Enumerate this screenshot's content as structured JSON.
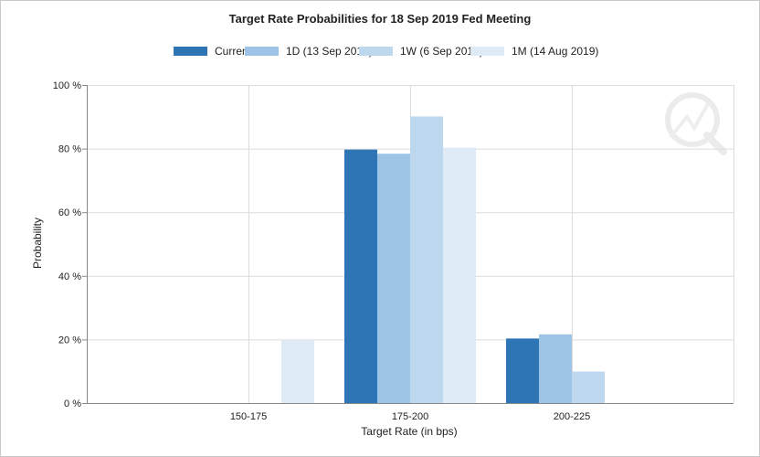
{
  "chart_data": {
    "type": "bar",
    "title": "Target Rate Probabilities for 18 Sep 2019 Fed Meeting",
    "xlabel": "Target Rate (in bps)",
    "ylabel": "Probability",
    "categories": [
      "150-175",
      "175-200",
      "200-225"
    ],
    "series": [
      {
        "name": "Current",
        "color": "#2e75b6",
        "values": [
          0,
          79.7,
          20.3
        ]
      },
      {
        "name": "1D (13 Sep 2019)",
        "color": "#9dc3e6",
        "values": [
          0,
          78.4,
          21.6
        ]
      },
      {
        "name": "1W (6 Sep 2019)",
        "color": "#bdd7ee",
        "values": [
          0,
          90.1,
          9.9
        ]
      },
      {
        "name": "1M (14 Aug 2019)",
        "color": "#deebf7",
        "values": [
          19.7,
          80.3,
          0
        ]
      }
    ],
    "ylim": [
      0,
      100
    ],
    "yticks": [
      0,
      20,
      40,
      60,
      80,
      100
    ],
    "ytick_labels": [
      "0 %",
      "20 %",
      "40 %",
      "60 %",
      "80 %",
      "100 %"
    ],
    "grid": true,
    "legend": "top-center"
  }
}
